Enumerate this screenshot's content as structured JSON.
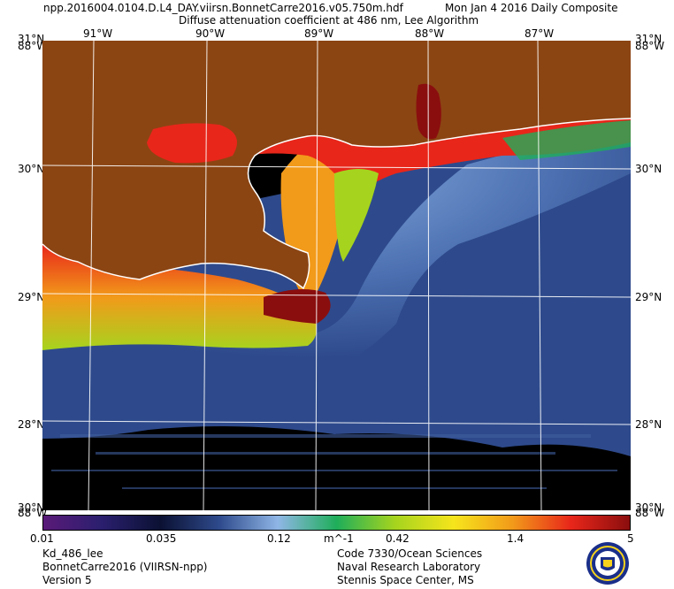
{
  "header": {
    "filename": "npp.2016004.0104.D.L4_DAY.viirsn.BonnetCarre2016.v05.750m.hdf",
    "date": "Mon Jan  4 2016 Daily Composite",
    "product": "Diffuse attenuation coefficient at 486 nm, Lee Algorithm"
  },
  "map": {
    "lon_labels": [
      "91°W",
      "90°W",
      "89°W",
      "88°W",
      "87°W"
    ],
    "lat_labels": [
      "31°N",
      "30°N",
      "29°N",
      "28°N"
    ],
    "corner_top_left": "31°N",
    "corner_top_left_lon": "88°W",
    "corner_top_right": "31°N",
    "corner_top_right_lon": "88°W",
    "corner_bottom_left": "30°N",
    "corner_bottom_left_lon": "88°W",
    "corner_bottom_right": "30°N",
    "corner_bottom_right_lon": "88°W",
    "colors": {
      "land": "#8b4513",
      "no_data": "#000000",
      "offshore": "#2e4a8c",
      "shelf": "#7fa6d6",
      "turbid_high": "#e8261a",
      "turbid_mid": "#f29a1a",
      "turbid_low": "#a6d41e",
      "coast_line": "#ffffff",
      "grid": "#ffffff"
    }
  },
  "colorbar": {
    "labels": [
      "0.01",
      "0.035",
      "0.12",
      "m^-1",
      "0.42",
      "1.4",
      "5"
    ],
    "stops": [
      "#5a1a78",
      "#2a1f6e",
      "#0b1133",
      "#2e4a8c",
      "#8fb6e6",
      "#1fae5a",
      "#a6d41e",
      "#f6e51c",
      "#f29a1a",
      "#e8261a",
      "#8a0e0e"
    ]
  },
  "footer": {
    "left_line1": "Kd_486_lee",
    "left_line2": "BonnetCarre2016 (VIIRSN-npp)",
    "left_line3": "Version 5",
    "right_line1": "Code 7330/Ocean Sciences",
    "right_line2": "Naval Research Laboratory",
    "right_line3": "Stennis Space Center, MS",
    "seal_icon": "nrl-seal-icon"
  }
}
